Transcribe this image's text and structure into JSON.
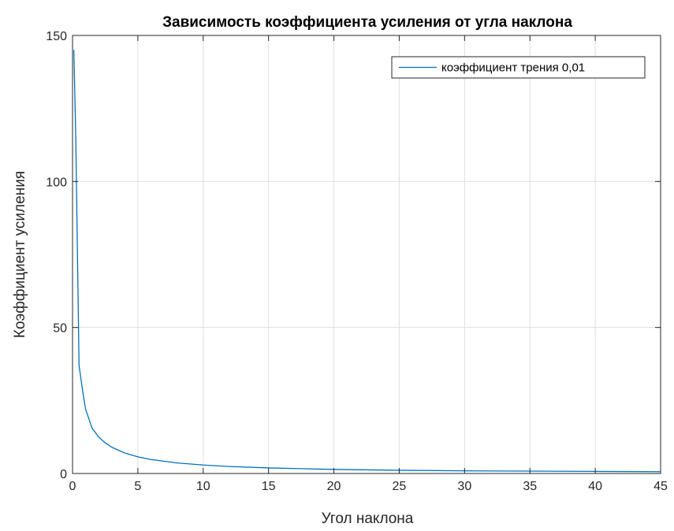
{
  "chart_data": {
    "type": "line",
    "title": "Зависимость коэффициента усиления от угла наклона",
    "xlabel": "Угол наклона",
    "ylabel": "Коэффициент усиления",
    "xlim": [
      0,
      45
    ],
    "ylim": [
      0,
      150
    ],
    "xticks": [
      0,
      5,
      10,
      15,
      20,
      25,
      30,
      35,
      40,
      45
    ],
    "yticks": [
      0,
      50,
      100,
      150
    ],
    "xtick_labels": [
      "0",
      "5",
      "10",
      "15",
      "20",
      "25",
      "30",
      "35",
      "40",
      "45"
    ],
    "ytick_labels": [
      "0",
      "50",
      "100",
      "150"
    ],
    "grid": true,
    "legend_position": "top-right",
    "series": [
      {
        "name": "коэффициент трения 0,01",
        "color": "#0072BD",
        "x": [
          0.1,
          0.25,
          0.5,
          0.75,
          1,
          1.5,
          2,
          2.5,
          3,
          4,
          5,
          6,
          8,
          10,
          12,
          15,
          20,
          25,
          30,
          35,
          40,
          45
        ],
        "y": [
          145,
          115,
          37,
          29,
          22,
          15.5,
          12.5,
          10.5,
          9,
          7,
          5.7,
          4.8,
          3.6,
          2.9,
          2.4,
          1.9,
          1.4,
          1.1,
          0.9,
          0.8,
          0.7,
          0.6
        ]
      }
    ]
  }
}
